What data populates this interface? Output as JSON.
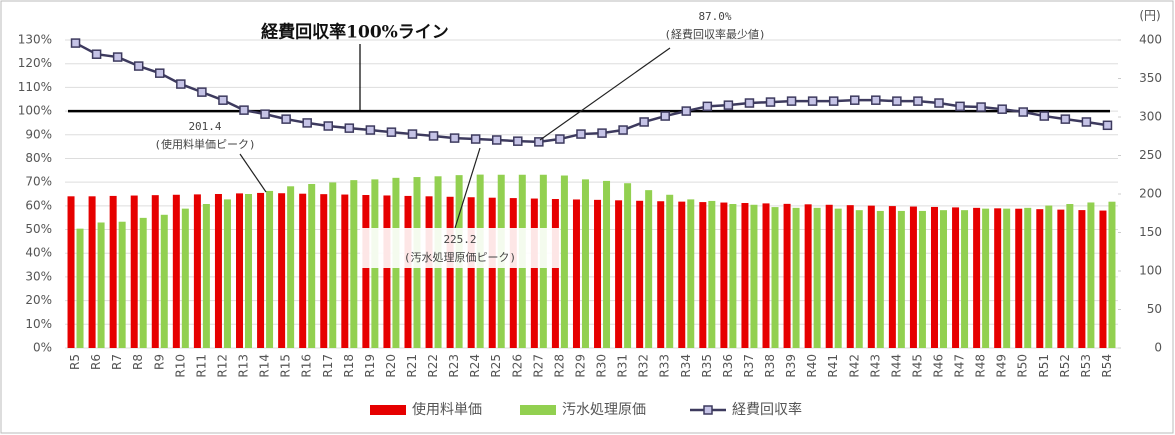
{
  "chart_data": {
    "type": "combo",
    "categories": [
      "R5",
      "R6",
      "R7",
      "R8",
      "R9",
      "R10",
      "R11",
      "R12",
      "R13",
      "R14",
      "R15",
      "R16",
      "R17",
      "R18",
      "R19",
      "R20",
      "R21",
      "R22",
      "R23",
      "R24",
      "R25",
      "R26",
      "R27",
      "R28",
      "R29",
      "R30",
      "R31",
      "R32",
      "R33",
      "R34",
      "R35",
      "R36",
      "R37",
      "R38",
      "R39",
      "R40",
      "R41",
      "R42",
      "R43",
      "R44",
      "R45",
      "R46",
      "R47",
      "R48",
      "R49",
      "R50",
      "R51",
      "R52",
      "R53",
      "R54"
    ],
    "series": [
      {
        "name": "使用料単価",
        "type": "bar",
        "axis": "y2",
        "color": "#e60000",
        "values": [
          197,
          197,
          197.5,
          198,
          198.5,
          199,
          199.5,
          200,
          200.8,
          201.4,
          201,
          200.4,
          199.8,
          199.3,
          198.7,
          198.1,
          197.5,
          197,
          196.4,
          195.8,
          195.2,
          194.7,
          194.1,
          193.5,
          192.9,
          192.4,
          191.8,
          191.2,
          190.6,
          190.1,
          189.5,
          188.9,
          188.3,
          187.8,
          187.2,
          186.6,
          186,
          185.5,
          184.9,
          184.3,
          183.7,
          183.2,
          182.6,
          182,
          181.4,
          180.9,
          180.3,
          179.7,
          179.1,
          178.5
        ]
      },
      {
        "name": "汚水処理原価",
        "type": "bar",
        "axis": "y2",
        "color": "#92d050",
        "values": [
          155,
          163,
          164,
          169,
          173,
          181,
          187,
          193,
          200,
          204,
          210,
          213,
          215,
          218,
          219,
          221,
          222,
          223,
          224.5,
          225.2,
          225,
          225,
          225,
          224,
          219,
          217,
          214,
          205,
          199,
          193,
          191,
          187,
          186,
          183,
          182,
          182,
          181,
          179,
          178,
          178,
          178,
          179,
          179,
          181,
          181,
          182,
          185,
          187,
          189,
          190
        ]
      },
      {
        "name": "経費回収率",
        "type": "line",
        "axis": "y",
        "color": "#3d3a5e",
        "marker_fill": "#c5c3e6",
        "values": [
          128.7,
          124,
          122.8,
          119,
          116,
          111.4,
          108,
          104.6,
          100.4,
          98.7,
          96.6,
          95,
          93.7,
          92.8,
          92,
          91.1,
          90.3,
          89.5,
          88.6,
          88.2,
          87.8,
          87.3,
          87.0,
          88.2,
          90.3,
          90.7,
          92,
          95.4,
          97.9,
          100,
          102,
          102.5,
          103.4,
          103.8,
          104.2,
          104.2,
          104.2,
          104.6,
          104.6,
          104.2,
          104.2,
          103.4,
          102,
          101.7,
          100.8,
          99.6,
          97.9,
          96.6,
          95.4,
          94
        ]
      }
    ],
    "ylim": [
      0,
      130
    ],
    "yticks": [
      {
        "value": 0,
        "label": "0%"
      },
      {
        "value": 10,
        "label": "10%"
      },
      {
        "value": 20,
        "label": "20%"
      },
      {
        "value": 30,
        "label": "30%"
      },
      {
        "value": 40,
        "label": "40%"
      },
      {
        "value": 50,
        "label": "50%"
      },
      {
        "value": 60,
        "label": "60%"
      },
      {
        "value": 70,
        "label": "70%"
      },
      {
        "value": 80,
        "label": "80%"
      },
      {
        "value": 90,
        "label": "90%"
      },
      {
        "value": 100,
        "label": "100%"
      },
      {
        "value": 110,
        "label": "110%"
      },
      {
        "value": 120,
        "label": "120%"
      },
      {
        "value": 130,
        "label": "130%"
      }
    ],
    "y2lim": [
      0,
      400
    ],
    "y2ticks": [
      0,
      50,
      100,
      150,
      200,
      250,
      300,
      350,
      400
    ],
    "y2label": "(円)",
    "grid": true,
    "reference_line": {
      "value": 100,
      "label": "経費回収率100%ライン"
    },
    "annotations": [
      {
        "text": "87.0%",
        "note": "(経費回収率最少値)"
      },
      {
        "text": "201.4",
        "note": "(使用料単価ピーク)"
      },
      {
        "text": "225.2",
        "note": "(汚水処理原価ピーク)"
      }
    ],
    "legend": "bottom"
  }
}
